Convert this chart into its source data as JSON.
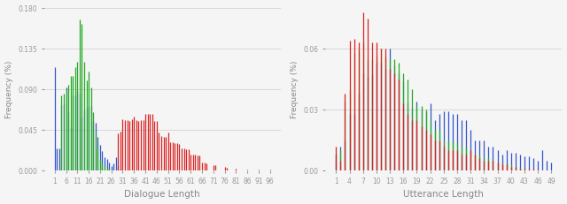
{
  "left": {
    "xlabel": "Dialogue Length",
    "ylabel": "Frequency (%)",
    "ylim": [
      0,
      0.18
    ],
    "yticks": [
      0,
      0.045,
      0.09,
      0.135,
      0.18
    ],
    "xticks": [
      1,
      6,
      11,
      16,
      21,
      26,
      31,
      36,
      41,
      46,
      51,
      56,
      61,
      66,
      71,
      76,
      81,
      86,
      91,
      96
    ],
    "blue_x": [
      1,
      2,
      3,
      4,
      5,
      6,
      7,
      8,
      9,
      10,
      11,
      12,
      13,
      14,
      15,
      16,
      17,
      18,
      19,
      20,
      21,
      22,
      23,
      24,
      25,
      26,
      27,
      28,
      29,
      30
    ],
    "blue_y": [
      0.115,
      0.025,
      0.025,
      0.073,
      0.074,
      0.092,
      0.065,
      0.048,
      0.083,
      0.083,
      0.088,
      0.085,
      0.06,
      0.068,
      0.07,
      0.072,
      0.072,
      0.055,
      0.053,
      0.037,
      0.029,
      0.022,
      0.015,
      0.013,
      0.009,
      0.005,
      0.008,
      0.015,
      0.005,
      0.002
    ],
    "green_x": [
      4,
      5,
      6,
      7,
      8,
      9,
      10,
      11,
      12,
      13,
      14,
      15,
      16,
      17,
      18,
      19,
      20,
      21,
      22,
      23,
      24,
      25
    ],
    "green_y": [
      0.083,
      0.085,
      0.09,
      0.095,
      0.105,
      0.105,
      0.115,
      0.12,
      0.167,
      0.162,
      0.12,
      0.1,
      0.11,
      0.092,
      0.065,
      0.042,
      0.025,
      0.013,
      0.008,
      0.005,
      0.003,
      0.002
    ],
    "red_x": [
      29,
      30,
      31,
      32,
      33,
      34,
      35,
      36,
      37,
      38,
      39,
      40,
      41,
      42,
      43,
      44,
      45,
      46,
      47,
      48,
      49,
      50,
      51,
      52,
      53,
      54,
      55,
      56,
      57,
      58,
      59,
      60,
      61,
      62,
      63,
      64,
      65,
      66,
      67,
      68,
      71,
      72,
      76,
      77,
      81,
      86,
      91,
      96
    ],
    "red_y": [
      0.041,
      0.043,
      0.057,
      0.056,
      0.056,
      0.055,
      0.057,
      0.06,
      0.056,
      0.055,
      0.056,
      0.056,
      0.063,
      0.063,
      0.063,
      0.063,
      0.055,
      0.055,
      0.042,
      0.038,
      0.037,
      0.037,
      0.042,
      0.032,
      0.032,
      0.031,
      0.031,
      0.03,
      0.025,
      0.025,
      0.024,
      0.024,
      0.018,
      0.018,
      0.018,
      0.017,
      0.017,
      0.009,
      0.009,
      0.008,
      0.006,
      0.006,
      0.004,
      0.003,
      0.002,
      0.001,
      0.001,
      0.001
    ]
  },
  "right": {
    "xlabel": "Utterance Length",
    "ylabel": "Frequency (%)",
    "ylim": [
      0,
      0.08
    ],
    "yticks": [
      0,
      0.03,
      0.06
    ],
    "xticks": [
      1,
      4,
      7,
      10,
      13,
      16,
      19,
      22,
      25,
      28,
      31,
      34,
      37,
      40,
      43,
      46,
      49
    ],
    "blue_x": [
      1,
      2,
      3,
      4,
      5,
      6,
      7,
      8,
      9,
      10,
      11,
      12,
      13,
      14,
      15,
      16,
      17,
      18,
      19,
      20,
      21,
      22,
      23,
      24,
      25,
      26,
      27,
      28,
      29,
      30,
      31,
      32,
      33,
      34,
      35,
      36,
      37,
      38,
      39,
      40,
      41,
      42,
      43,
      44,
      45,
      46,
      47,
      48,
      49
    ],
    "blue_y": [
      0.008,
      0.012,
      0.015,
      0.028,
      0.028,
      0.038,
      0.048,
      0.046,
      0.047,
      0.053,
      0.053,
      0.05,
      0.06,
      0.052,
      0.048,
      0.044,
      0.033,
      0.031,
      0.034,
      0.03,
      0.029,
      0.033,
      0.025,
      0.028,
      0.029,
      0.029,
      0.028,
      0.028,
      0.025,
      0.025,
      0.02,
      0.015,
      0.015,
      0.015,
      0.012,
      0.012,
      0.01,
      0.008,
      0.01,
      0.009,
      0.009,
      0.008,
      0.007,
      0.007,
      0.006,
      0.005,
      0.01,
      0.005,
      0.004
    ],
    "green_x": [
      1,
      2,
      3,
      4,
      5,
      6,
      7,
      8,
      9,
      10,
      11,
      12,
      13,
      14,
      15,
      16,
      17,
      18,
      19,
      20,
      21,
      22,
      23,
      24,
      25,
      26,
      27,
      28,
      29,
      30,
      31,
      32,
      33,
      34,
      35,
      36,
      37,
      38,
      39,
      40,
      41,
      42,
      43
    ],
    "green_y": [
      0.008,
      0.01,
      0.034,
      0.04,
      0.058,
      0.059,
      0.063,
      0.055,
      0.055,
      0.056,
      0.06,
      0.056,
      0.055,
      0.055,
      0.053,
      0.048,
      0.045,
      0.04,
      0.032,
      0.032,
      0.03,
      0.025,
      0.02,
      0.02,
      0.015,
      0.015,
      0.014,
      0.014,
      0.012,
      0.012,
      0.01,
      0.008,
      0.008,
      0.006,
      0.006,
      0.005,
      0.004,
      0.004,
      0.003,
      0.003,
      0.002,
      0.002,
      0.001
    ],
    "red_x": [
      1,
      2,
      3,
      4,
      5,
      6,
      7,
      8,
      9,
      10,
      11,
      12,
      13,
      14,
      15,
      16,
      17,
      18,
      19,
      20,
      21,
      22,
      23,
      24,
      25,
      26,
      27,
      28,
      29,
      30,
      31,
      32,
      33,
      34,
      35,
      36,
      37,
      38,
      39,
      40,
      41,
      42,
      43,
      44,
      45,
      46
    ],
    "red_y": [
      0.012,
      0.005,
      0.038,
      0.064,
      0.065,
      0.063,
      0.078,
      0.075,
      0.063,
      0.063,
      0.06,
      0.06,
      0.05,
      0.048,
      0.045,
      0.033,
      0.028,
      0.025,
      0.025,
      0.022,
      0.02,
      0.018,
      0.015,
      0.015,
      0.012,
      0.01,
      0.01,
      0.01,
      0.008,
      0.008,
      0.01,
      0.008,
      0.006,
      0.005,
      0.005,
      0.005,
      0.004,
      0.003,
      0.003,
      0.002,
      0.002,
      0.001,
      0.001,
      0.001,
      0.001,
      0.001
    ]
  },
  "colors": {
    "blue": "#3355cc",
    "green": "#22aa22",
    "red": "#dd2222"
  },
  "bg_color": "#f5f5f5",
  "grid_color": "#cccccc",
  "tick_color": "#999999",
  "label_color": "#888888"
}
